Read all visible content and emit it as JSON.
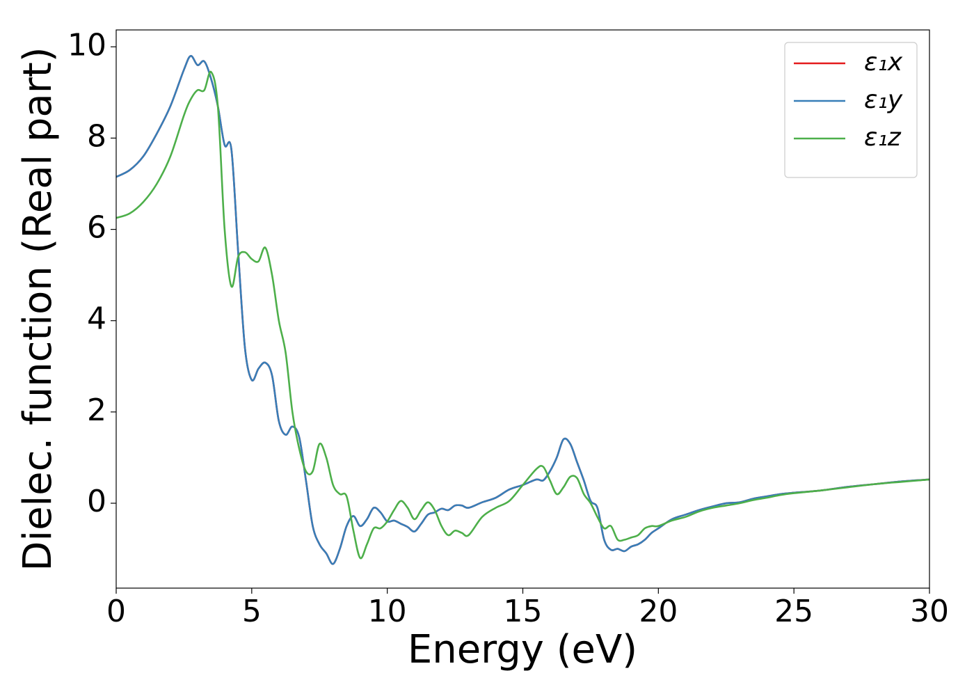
{
  "chart_data": {
    "type": "line",
    "xlabel": "Energy (eV)",
    "ylabel": "Dielec. function (Real part)",
    "x": [
      0,
      0.5,
      1,
      1.5,
      2,
      2.5,
      2.75,
      3,
      3.25,
      3.5,
      3.75,
      4,
      4.25,
      4.5,
      4.75,
      5,
      5.25,
      5.5,
      5.75,
      6,
      6.25,
      6.5,
      6.75,
      7,
      7.25,
      7.5,
      7.75,
      8,
      8.25,
      8.5,
      8.75,
      9,
      9.25,
      9.5,
      9.75,
      10,
      10.25,
      10.5,
      10.75,
      11,
      11.25,
      11.5,
      11.75,
      12,
      12.25,
      12.5,
      12.75,
      13,
      13.5,
      14,
      14.5,
      15,
      15.5,
      15.75,
      16,
      16.25,
      16.5,
      16.75,
      17,
      17.25,
      17.5,
      17.75,
      18,
      18.25,
      18.5,
      18.75,
      19,
      19.25,
      19.5,
      19.75,
      20,
      20.5,
      21,
      21.5,
      22,
      22.5,
      23,
      23.5,
      24,
      24.5,
      25,
      26,
      27,
      28,
      29,
      30
    ],
    "series": [
      {
        "name": "ε₁x",
        "color": "#e41a1c",
        "values": [
          7.15,
          7.3,
          7.6,
          8.1,
          8.7,
          9.5,
          9.8,
          9.6,
          9.68,
          9.3,
          8.7,
          7.85,
          7.75,
          5.5,
          3.4,
          2.7,
          2.95,
          3.08,
          2.8,
          1.8,
          1.5,
          1.68,
          1.45,
          0.5,
          -0.5,
          -0.9,
          -1.1,
          -1.33,
          -1.0,
          -0.5,
          -0.28,
          -0.5,
          -0.35,
          -0.1,
          -0.2,
          -0.4,
          -0.38,
          -0.45,
          -0.52,
          -0.62,
          -0.45,
          -0.25,
          -0.2,
          -0.12,
          -0.15,
          -0.05,
          -0.05,
          -0.1,
          0.02,
          0.12,
          0.3,
          0.4,
          0.52,
          0.5,
          0.7,
          1.0,
          1.4,
          1.3,
          0.9,
          0.5,
          0.05,
          -0.1,
          -0.8,
          -1.02,
          -1.0,
          -1.05,
          -0.95,
          -0.9,
          -0.8,
          -0.65,
          -0.55,
          -0.35,
          -0.25,
          -0.15,
          -0.07,
          0.0,
          0.02,
          0.1,
          0.15,
          0.2,
          0.23,
          0.28,
          0.36,
          0.42,
          0.48,
          0.52
        ]
      },
      {
        "name": "ε₁y",
        "color": "#377eb8",
        "values": [
          7.15,
          7.3,
          7.6,
          8.1,
          8.7,
          9.5,
          9.8,
          9.6,
          9.68,
          9.3,
          8.7,
          7.85,
          7.75,
          5.5,
          3.4,
          2.7,
          2.95,
          3.08,
          2.8,
          1.8,
          1.5,
          1.68,
          1.45,
          0.5,
          -0.5,
          -0.9,
          -1.1,
          -1.33,
          -1.0,
          -0.5,
          -0.28,
          -0.5,
          -0.35,
          -0.1,
          -0.2,
          -0.4,
          -0.38,
          -0.45,
          -0.52,
          -0.62,
          -0.45,
          -0.25,
          -0.2,
          -0.12,
          -0.15,
          -0.05,
          -0.05,
          -0.1,
          0.02,
          0.12,
          0.3,
          0.4,
          0.52,
          0.5,
          0.7,
          1.0,
          1.4,
          1.3,
          0.9,
          0.5,
          0.05,
          -0.1,
          -0.8,
          -1.02,
          -1.0,
          -1.05,
          -0.95,
          -0.9,
          -0.8,
          -0.65,
          -0.55,
          -0.35,
          -0.25,
          -0.15,
          -0.07,
          0.0,
          0.02,
          0.1,
          0.15,
          0.2,
          0.23,
          0.28,
          0.36,
          0.42,
          0.48,
          0.52
        ]
      },
      {
        "name": "ε₁z",
        "color": "#4daf4a",
        "values": [
          6.25,
          6.35,
          6.6,
          7.0,
          7.6,
          8.5,
          8.85,
          9.05,
          9.05,
          9.45,
          8.7,
          6.0,
          4.75,
          5.4,
          5.5,
          5.35,
          5.3,
          5.6,
          5.0,
          4.0,
          3.3,
          2.0,
          1.2,
          0.7,
          0.7,
          1.3,
          1.0,
          0.4,
          0.2,
          0.15,
          -0.6,
          -1.2,
          -0.9,
          -0.55,
          -0.55,
          -0.4,
          -0.15,
          0.05,
          -0.1,
          -0.35,
          -0.15,
          0.02,
          -0.15,
          -0.5,
          -0.7,
          -0.6,
          -0.65,
          -0.7,
          -0.3,
          -0.1,
          0.05,
          0.4,
          0.75,
          0.8,
          0.5,
          0.2,
          0.35,
          0.58,
          0.55,
          0.2,
          0.0,
          -0.3,
          -0.55,
          -0.5,
          -0.8,
          -0.8,
          -0.75,
          -0.7,
          -0.55,
          -0.5,
          -0.5,
          -0.38,
          -0.3,
          -0.18,
          -0.1,
          -0.05,
          0.0,
          0.07,
          0.12,
          0.18,
          0.22,
          0.28,
          0.35,
          0.42,
          0.47,
          0.52
        ]
      }
    ],
    "xlim": [
      0,
      30
    ],
    "xticks": [
      0,
      5,
      10,
      15,
      20,
      25,
      30
    ],
    "ylim": [
      -1.86,
      10.37
    ],
    "yticks": [
      0,
      2,
      4,
      6,
      8,
      10
    ],
    "grid": false,
    "legend": "upper right"
  }
}
